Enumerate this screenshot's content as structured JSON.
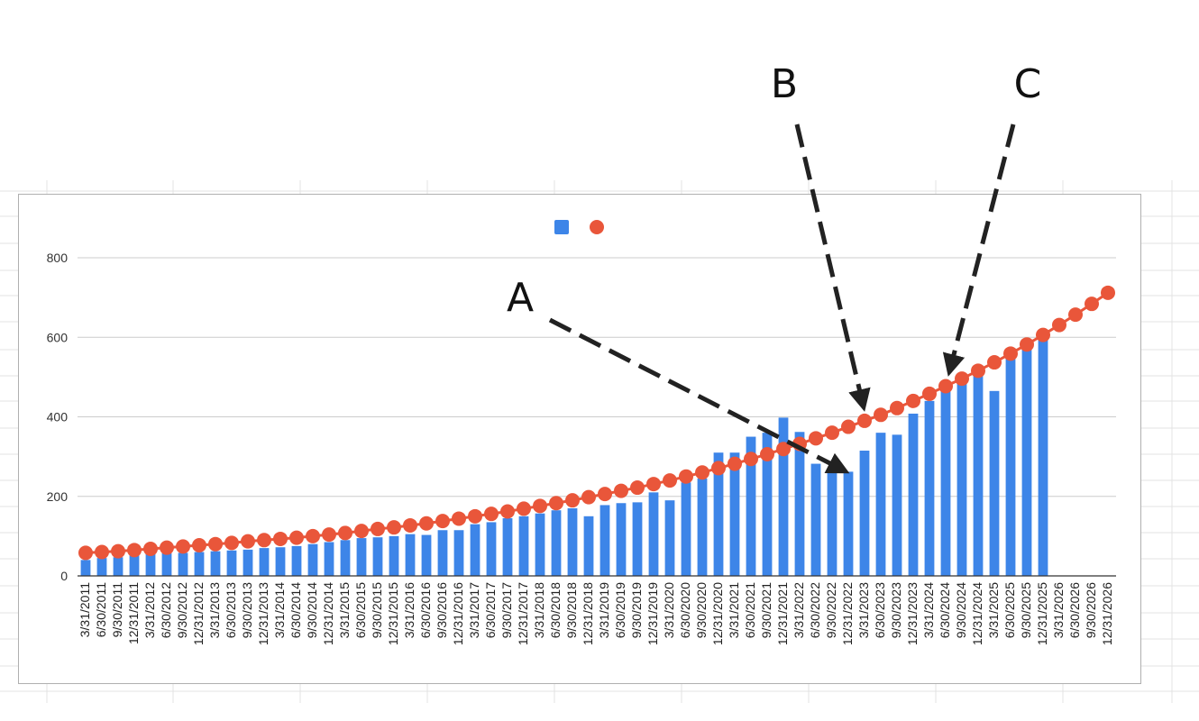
{
  "colors": {
    "bar": "#3d85e8",
    "marker": "#e9563a",
    "line": "#e9563a",
    "grid": "#cccccc",
    "arrow": "#222222"
  },
  "chart_data": {
    "type": "bar",
    "title": "",
    "xlabel": "",
    "ylabel": "",
    "ylim": [
      0,
      900
    ],
    "yticks": [
      0,
      200,
      400,
      600,
      800
    ],
    "legend_placement": "top-center",
    "grid": true,
    "categories": [
      "3/31/2011",
      "6/30/2011",
      "9/30/2011",
      "12/31/2011",
      "3/31/2012",
      "6/30/2012",
      "9/30/2012",
      "12/31/2012",
      "3/31/2013",
      "6/30/2013",
      "9/30/2013",
      "12/31/2013",
      "3/31/2014",
      "6/30/2014",
      "9/30/2014",
      "12/31/2014",
      "3/31/2015",
      "6/30/2015",
      "9/30/2015",
      "12/31/2015",
      "3/31/2016",
      "6/30/2016",
      "9/30/2016",
      "12/31/2016",
      "3/31/2017",
      "6/30/2017",
      "9/30/2017",
      "12/31/2017",
      "3/31/2018",
      "6/30/2018",
      "9/30/2018",
      "12/31/2018",
      "3/31/2019",
      "6/30/2019",
      "9/30/2019",
      "12/31/2019",
      "3/31/2020",
      "6/30/2020",
      "9/30/2020",
      "12/31/2020",
      "3/31/2021",
      "6/30/2021",
      "9/30/2021",
      "12/31/2021",
      "3/31/2022",
      "6/30/2022",
      "9/30/2022",
      "12/31/2022",
      "3/31/2023",
      "6/30/2023",
      "9/30/2023",
      "12/31/2023",
      "3/31/2024",
      "6/30/2024",
      "9/30/2024",
      "12/31/2024",
      "3/31/2025",
      "6/30/2025",
      "9/30/2025",
      "12/31/2025",
      "3/31/2026",
      "6/30/2026",
      "9/30/2026",
      "12/31/2026"
    ],
    "series": [
      {
        "kind": "bar",
        "values": [
          40,
          45,
          47,
          52,
          55,
          57,
          58,
          60,
          62,
          64,
          66,
          70,
          72,
          75,
          80,
          85,
          90,
          95,
          97,
          100,
          105,
          103,
          115,
          115,
          130,
          135,
          145,
          150,
          157,
          165,
          170,
          150,
          178,
          183,
          185,
          210,
          190,
          235,
          245,
          310,
          310,
          350,
          360,
          398,
          362,
          282,
          265,
          262,
          315,
          360,
          355,
          408,
          440,
          465,
          490,
          505,
          465,
          550,
          570,
          600,
          null,
          null,
          null,
          null
        ]
      },
      {
        "kind": "line-markers",
        "values": [
          58,
          60,
          62,
          65,
          68,
          71,
          74,
          77,
          80,
          83,
          87,
          90,
          93,
          96,
          100,
          104,
          108,
          113,
          118,
          122,
          127,
          132,
          138,
          144,
          150,
          156,
          162,
          169,
          176,
          183,
          190,
          198,
          206,
          214,
          222,
          231,
          240,
          250,
          260,
          271,
          282,
          294,
          306,
          319,
          332,
          346,
          360,
          375,
          390,
          405,
          422,
          440,
          458,
          477,
          496,
          516,
          537,
          559,
          582,
          606,
          631,
          657,
          684,
          712
        ]
      }
    ],
    "annotations": [
      "A",
      "B",
      "C"
    ]
  }
}
